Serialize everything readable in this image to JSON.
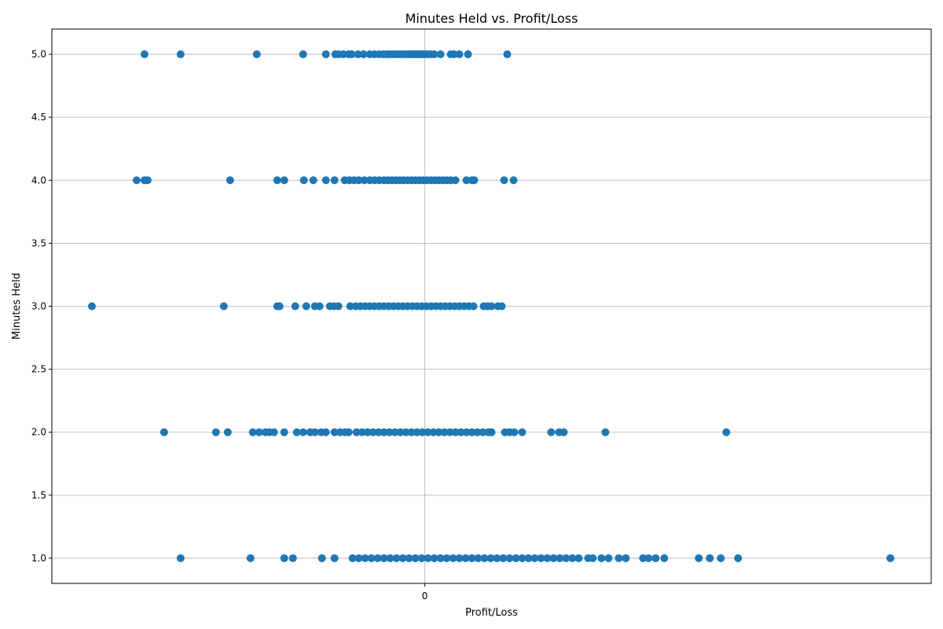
{
  "chart_data": {
    "type": "scatter",
    "title": "Minutes Held vs. Profit/Loss",
    "xlabel": "Profit/Loss",
    "ylabel": "Minutes Held",
    "xlim": [
      -475,
      645
    ],
    "ylim": [
      0.8,
      5.2
    ],
    "x_ticks": [
      0
    ],
    "x_tick_labels": [
      "0"
    ],
    "y_ticks": [
      1.0,
      1.5,
      2.0,
      2.5,
      3.0,
      3.5,
      4.0,
      4.5,
      5.0
    ],
    "y_tick_labels": [
      "1.0",
      "1.5",
      "2.0",
      "2.5",
      "3.0",
      "3.5",
      "4.0",
      "4.5",
      "5.0"
    ],
    "grid": true,
    "marker_color": "#1f77b4",
    "series": [
      {
        "x": [
          -357,
          -311,
          -214,
          -155,
          -126,
          -114,
          -110,
          -104,
          -97,
          -93,
          -85,
          -78,
          -70,
          -64,
          -58,
          -53,
          -48,
          -44,
          -40,
          -36,
          -32,
          -28,
          -24,
          -20,
          -17,
          -14,
          -11,
          -8,
          -5,
          -2,
          1,
          4,
          8,
          12,
          20,
          33,
          37,
          44,
          55,
          105
        ],
        "y": [
          5,
          5,
          5,
          5,
          5,
          5,
          5,
          5,
          5,
          5,
          5,
          5,
          5,
          5,
          5,
          5,
          5,
          5,
          5,
          5,
          5,
          5,
          5,
          5,
          5,
          5,
          5,
          5,
          5,
          5,
          5,
          5,
          5,
          5,
          5,
          5,
          5,
          5,
          5,
          5
        ]
      },
      {
        "x": [
          -367,
          -357,
          -353,
          -248,
          -188,
          -179,
          -154,
          -142,
          -126,
          -115,
          -102,
          -96,
          -90,
          -84,
          -77,
          -70,
          -64,
          -58,
          -52,
          -47,
          -42,
          -37,
          -32,
          -27,
          -22,
          -17,
          -12,
          -7,
          -2,
          3,
          8,
          13,
          18,
          23,
          28,
          33,
          39,
          53,
          60,
          63,
          101,
          113
        ],
        "y": [
          4,
          4,
          4,
          4,
          4,
          4,
          4,
          4,
          4,
          4,
          4,
          4,
          4,
          4,
          4,
          4,
          4,
          4,
          4,
          4,
          4,
          4,
          4,
          4,
          4,
          4,
          4,
          4,
          4,
          4,
          4,
          4,
          4,
          4,
          4,
          4,
          4,
          4,
          4,
          4,
          4,
          4
        ]
      },
      {
        "x": [
          -424,
          -256,
          -188,
          -185,
          -165,
          -151,
          -140,
          -134,
          -121,
          -116,
          -110,
          -95,
          -88,
          -82,
          -76,
          -70,
          -64,
          -58,
          -52,
          -46,
          -40,
          -34,
          -28,
          -22,
          -16,
          -10,
          -4,
          2,
          8,
          14,
          20,
          26,
          32,
          38,
          44,
          50,
          56,
          62,
          75,
          80,
          85,
          93,
          98
        ],
        "y": [
          3,
          3,
          3,
          3,
          3,
          3,
          3,
          3,
          3,
          3,
          3,
          3,
          3,
          3,
          3,
          3,
          3,
          3,
          3,
          3,
          3,
          3,
          3,
          3,
          3,
          3,
          3,
          3,
          3,
          3,
          3,
          3,
          3,
          3,
          3,
          3,
          3,
          3,
          3,
          3,
          3,
          3,
          3
        ]
      },
      {
        "x": [
          -332,
          -266,
          -251,
          -219,
          -211,
          -203,
          -198,
          -192,
          -179,
          -163,
          -155,
          -146,
          -140,
          -132,
          -126,
          -115,
          -108,
          -102,
          -97,
          -87,
          -80,
          -73,
          -66,
          -59,
          -52,
          -45,
          -38,
          -31,
          -24,
          -17,
          -10,
          -3,
          4,
          11,
          18,
          25,
          32,
          39,
          46,
          53,
          60,
          67,
          74,
          81,
          85,
          102,
          108,
          114,
          124,
          161,
          171,
          177,
          230,
          384
        ],
        "y": [
          2,
          2,
          2,
          2,
          2,
          2,
          2,
          2,
          2,
          2,
          2,
          2,
          2,
          2,
          2,
          2,
          2,
          2,
          2,
          2,
          2,
          2,
          2,
          2,
          2,
          2,
          2,
          2,
          2,
          2,
          2,
          2,
          2,
          2,
          2,
          2,
          2,
          2,
          2,
          2,
          2,
          2,
          2,
          2,
          2,
          2,
          2,
          2,
          2,
          2,
          2,
          2,
          2,
          2
        ]
      },
      {
        "x": [
          -311,
          -222,
          -179,
          -168,
          -131,
          -115,
          -92,
          -84,
          -76,
          -68,
          -60,
          -52,
          -44,
          -36,
          -28,
          -20,
          -12,
          -4,
          4,
          12,
          20,
          28,
          36,
          44,
          52,
          60,
          68,
          76,
          84,
          92,
          100,
          108,
          116,
          124,
          132,
          140,
          148,
          156,
          164,
          172,
          180,
          188,
          196,
          208,
          214,
          225,
          234,
          247,
          256,
          278,
          285,
          294,
          305,
          349,
          363,
          377,
          399,
          593
        ],
        "y": [
          1,
          1,
          1,
          1,
          1,
          1,
          1,
          1,
          1,
          1,
          1,
          1,
          1,
          1,
          1,
          1,
          1,
          1,
          1,
          1,
          1,
          1,
          1,
          1,
          1,
          1,
          1,
          1,
          1,
          1,
          1,
          1,
          1,
          1,
          1,
          1,
          1,
          1,
          1,
          1,
          1,
          1,
          1,
          1,
          1,
          1,
          1,
          1,
          1,
          1,
          1,
          1,
          1,
          1,
          1,
          1,
          1,
          1
        ]
      }
    ]
  }
}
